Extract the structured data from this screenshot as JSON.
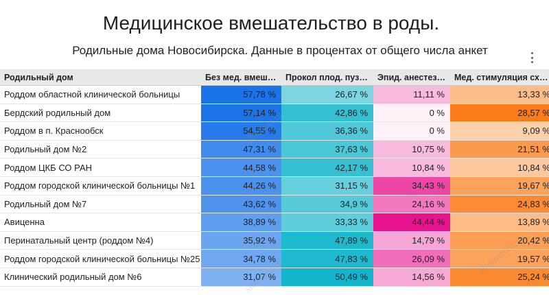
{
  "title": "Медицинское вмешательство в роды.",
  "subtitle": "Родильные дома Новосибирска. Данные в процентах от общего числа анкет",
  "menu_icon": "more-vert-icon",
  "watermark": "sibmama.ru",
  "colors": {
    "col1": "#1a73e8",
    "col2": "#12b5cb",
    "col3": "#e8148f",
    "col4": "#fa7b17"
  },
  "chart_data": {
    "type": "table",
    "columns": [
      "Родильный дом",
      "Без мед. вмешательства",
      "Прокол плод. пузыря",
      "Эпид. анестезия",
      "Мед. стимуляция схваток"
    ],
    "rows": [
      {
        "name": "Роддом областной клинической больницы",
        "values": [
          "57,78 %",
          "26,67 %",
          "11,11 %",
          "13,33 %"
        ],
        "raw": [
          57.78,
          26.67,
          11.11,
          13.33
        ]
      },
      {
        "name": "Бердский родильный дом",
        "values": [
          "57,14 %",
          "42,86 %",
          "0 %",
          "28,57 %"
        ],
        "raw": [
          57.14,
          42.86,
          0,
          28.57
        ]
      },
      {
        "name": "Роддом в п. Краснообск",
        "values": [
          "54,55 %",
          "36,36 %",
          "0 %",
          "9,09 %"
        ],
        "raw": [
          54.55,
          36.36,
          0,
          9.09
        ]
      },
      {
        "name": "Родильный дом №2",
        "values": [
          "47,31 %",
          "37,63 %",
          "10,75 %",
          "21,51 %"
        ],
        "raw": [
          47.31,
          37.63,
          10.75,
          21.51
        ]
      },
      {
        "name": "Роддом ЦКБ СО РАН",
        "values": [
          "44,58 %",
          "42,17 %",
          "10,84 %",
          "10,84 %"
        ],
        "raw": [
          44.58,
          42.17,
          10.84,
          10.84
        ]
      },
      {
        "name": "Роддом городской клинической больницы №1",
        "values": [
          "44,26 %",
          "31,15 %",
          "34,43 %",
          "19,67 %"
        ],
        "raw": [
          44.26,
          31.15,
          34.43,
          19.67
        ]
      },
      {
        "name": "Родильный дом №7",
        "values": [
          "43,62 %",
          "34,9 %",
          "24,16 %",
          "24,83 %"
        ],
        "raw": [
          43.62,
          34.9,
          24.16,
          24.83
        ]
      },
      {
        "name": "Авиценна",
        "values": [
          "38,89 %",
          "33,33 %",
          "44,44 %",
          "13,89 %"
        ],
        "raw": [
          38.89,
          33.33,
          44.44,
          13.89
        ]
      },
      {
        "name": "Перинатальный центр (роддом №4)",
        "values": [
          "35,92 %",
          "47,89 %",
          "14,79 %",
          "20,42 %"
        ],
        "raw": [
          35.92,
          47.89,
          14.79,
          20.42
        ]
      },
      {
        "name": "Роддом городской клинической больницы №25",
        "values": [
          "34,78 %",
          "47,83 %",
          "26,09 %",
          "19,57 %"
        ],
        "raw": [
          34.78,
          47.83,
          26.09,
          19.57
        ]
      },
      {
        "name": "Клинический родильный дом №6",
        "values": [
          "31,07 %",
          "50,49 %",
          "14,56 %",
          "25,24 %"
        ],
        "raw": [
          31.07,
          50.49,
          14.56,
          25.24
        ]
      }
    ]
  }
}
